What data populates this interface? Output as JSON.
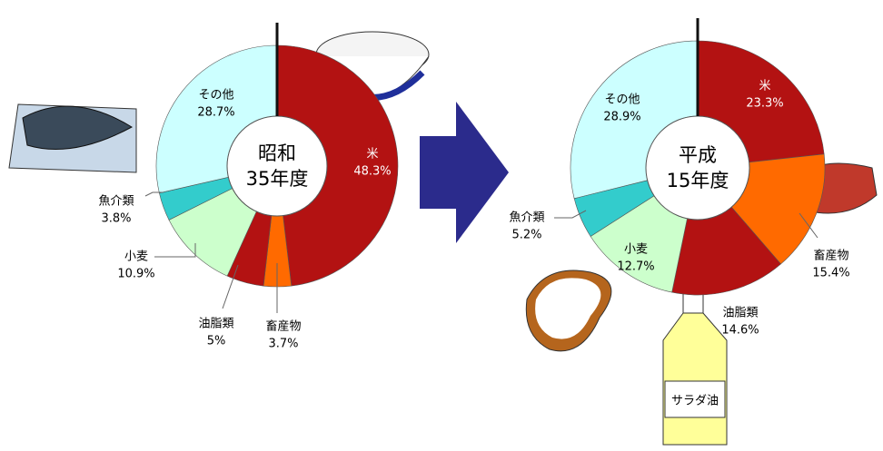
{
  "chart_data": [
    {
      "type": "pie",
      "donut": true,
      "title": [
        "昭和",
        "35年度"
      ],
      "categories": [
        "米",
        "畜産物",
        "油脂類",
        "小麦",
        "魚介類",
        "その他"
      ],
      "values": [
        48.3,
        3.7,
        5,
        10.9,
        3.8,
        28.7
      ],
      "value_labels": [
        "48.3%",
        "3.7%",
        "5%",
        "10.9%",
        "3.8%",
        "28.7%"
      ],
      "colors": [
        "#b31212",
        "#ff6a00",
        "#b31212",
        "#ccffcc",
        "#33cccc",
        "#ccffff"
      ]
    },
    {
      "type": "pie",
      "donut": true,
      "title": [
        "平成",
        "15年度"
      ],
      "categories": [
        "米",
        "畜産物",
        "油脂類",
        "小麦",
        "魚介類",
        "その他"
      ],
      "values": [
        23.3,
        15.4,
        14.6,
        12.7,
        5.2,
        28.9
      ],
      "value_labels": [
        "23.3%",
        "15.4%",
        "14.6%",
        "12.7%",
        "5.2%",
        "28.9%"
      ],
      "colors": [
        "#b31212",
        "#ff6a00",
        "#b31212",
        "#ccffcc",
        "#33cccc",
        "#ccffff"
      ]
    }
  ],
  "decorations": {
    "oil_bottle_label": "サラダ油"
  }
}
